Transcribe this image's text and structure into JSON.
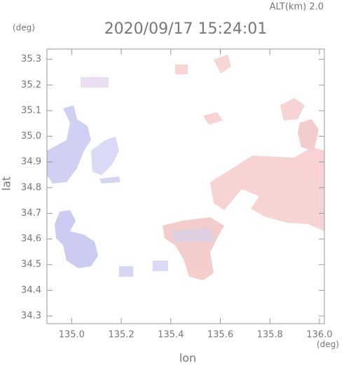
{
  "chart_data": {
    "type": "field",
    "title": "2020/09/17 15:24:01",
    "annotation": "ALT(km)  2.0",
    "x_label": "lon",
    "y_label": "lat",
    "x_unit": "(deg)",
    "y_unit": "(deg)",
    "xlim": [
      134.9,
      136.02
    ],
    "ylim": [
      34.27,
      35.34
    ],
    "xticks": [
      {
        "value": 135,
        "label": "135.0"
      },
      135.2,
      135.4,
      135.6,
      135.8,
      {
        "value": 136,
        "label": "136.0"
      }
    ],
    "yticks": [
      34.3,
      34.4,
      34.5,
      34.6,
      34.7,
      34.8,
      34.9,
      {
        "value": 35,
        "label": "35.0"
      },
      35.1,
      35.2,
      35.3
    ]
  }
}
